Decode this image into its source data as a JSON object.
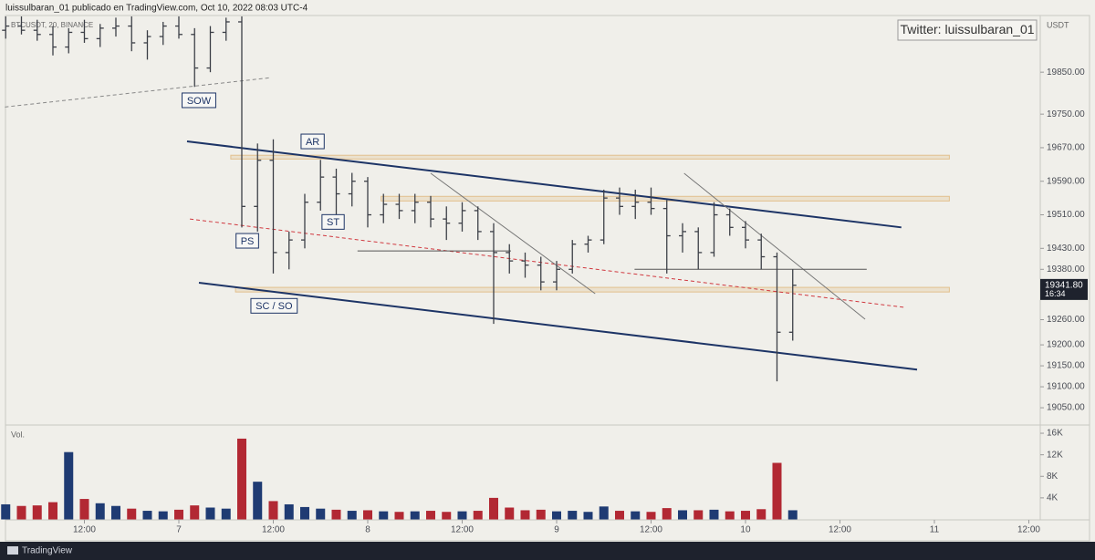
{
  "header": {
    "publisher": "luissulbaran_01 publicado en TradingView.com, Oct 10, 2022 08:03 UTC-4"
  },
  "chart_data": {
    "type": "ohlc",
    "title": "BTCUSDT, 20, BINANCE",
    "unit": "USDT",
    "watermark": "Twitter: luissulbaran_01",
    "bar_color": "#3c3f47",
    "x": [
      -22,
      -20,
      -18,
      -16,
      -14,
      -12,
      -10,
      -8,
      -6,
      -4,
      -2,
      0,
      2,
      4,
      6,
      8,
      10,
      12,
      14,
      16,
      18,
      20,
      22,
      24,
      26,
      28,
      30,
      32,
      34,
      36,
      38,
      40,
      42,
      44,
      46,
      48,
      50,
      52,
      54,
      56,
      58,
      60,
      62,
      64,
      66,
      68,
      70,
      72,
      74,
      76,
      78
    ],
    "open": [
      19950,
      19960,
      19950,
      19940,
      19910,
      19945,
      19930,
      19955,
      19960,
      19920,
      19935,
      19960,
      19940,
      19860,
      19945,
      19970,
      19530,
      19640,
      19420,
      19450,
      19540,
      19600,
      19560,
      19590,
      19510,
      19535,
      19520,
      19540,
      19500,
      19490,
      19520,
      19470,
      19420,
      19400,
      19390,
      19350,
      19380,
      19440,
      19450,
      19550,
      19530,
      19540,
      19525,
      19460,
      19470,
      19420,
      19510,
      19480,
      19450,
      19410,
      19230
    ],
    "high": [
      19990,
      19985,
      19975,
      19960,
      19955,
      19975,
      19965,
      19980,
      19985,
      19950,
      19970,
      19985,
      19955,
      19960,
      19980,
      19990,
      19680,
      19690,
      19470,
      19560,
      19641,
      19620,
      19610,
      19600,
      19560,
      19560,
      19560,
      19555,
      19530,
      19540,
      19530,
      19490,
      19440,
      19420,
      19410,
      19400,
      19450,
      19460,
      19570,
      19575,
      19570,
      19575,
      19545,
      19490,
      19480,
      19540,
      19525,
      19495,
      19465,
      19420,
      19380
    ],
    "low": [
      19930,
      19940,
      19925,
      19890,
      19895,
      19920,
      19910,
      19935,
      19900,
      19880,
      19915,
      19930,
      19815,
      19850,
      19925,
      19480,
      19470,
      19370,
      19380,
      19430,
      19520,
      19505,
      19530,
      19480,
      19490,
      19500,
      19490,
      19480,
      19450,
      19470,
      19450,
      19250,
      19370,
      19360,
      19330,
      19330,
      19370,
      19420,
      19440,
      19510,
      19500,
      19510,
      19370,
      19420,
      19380,
      19410,
      19460,
      19430,
      19380,
      19113,
      19210
    ],
    "close": [
      19960,
      19950,
      19940,
      19910,
      19945,
      19930,
      19955,
      19960,
      19920,
      19935,
      19960,
      19940,
      19860,
      19945,
      19970,
      19530,
      19640,
      19420,
      19450,
      19540,
      19600,
      19560,
      19590,
      19510,
      19535,
      19520,
      19540,
      19500,
      19490,
      19520,
      19470,
      19420,
      19400,
      19390,
      19350,
      19380,
      19440,
      19450,
      19550,
      19530,
      19540,
      19525,
      19460,
      19470,
      19420,
      19510,
      19480,
      19450,
      19410,
      19230,
      19342
    ],
    "xlim": [
      -22.724,
      109.45
    ],
    "xticks": [
      {
        "value": -12,
        "label": "12:00"
      },
      {
        "value": 0,
        "label": "7"
      },
      {
        "value": 12,
        "label": "12:00"
      },
      {
        "value": 24,
        "label": "8"
      },
      {
        "value": 36,
        "label": "12:00"
      },
      {
        "value": 48,
        "label": "9"
      },
      {
        "value": 60,
        "label": "12:00"
      },
      {
        "value": 72,
        "label": "10"
      },
      {
        "value": 84,
        "label": "12:00"
      },
      {
        "value": 96,
        "label": "11"
      },
      {
        "value": 108,
        "label": "12:00"
      }
    ],
    "ylim": [
      19011,
      19983
    ],
    "yticks": [
      {
        "value": 19050,
        "label": "19050.00"
      },
      {
        "value": 19100,
        "label": "19100.00"
      },
      {
        "value": 19150,
        "label": "19150.00"
      },
      {
        "value": 19200,
        "label": "19200.00"
      },
      {
        "value": 19260,
        "label": "19260.00"
      },
      {
        "value": 19380,
        "label": "19380.00"
      },
      {
        "value": 19430,
        "label": "19430.00"
      },
      {
        "value": 19510,
        "label": "19510.00"
      },
      {
        "value": 19590,
        "label": "19590.00"
      },
      {
        "value": 19670,
        "label": "19670.00"
      },
      {
        "value": 19750,
        "label": "19750.00"
      },
      {
        "value": 19850,
        "label": "19850.00"
      }
    ],
    "last_price": {
      "value": 19341.8,
      "label": "19341.80"
    },
    "countdown": "16:34",
    "annotations": [
      {
        "text": "SOW",
        "x": 2.55,
        "y": 19783
      },
      {
        "text": "AR",
        "x": 17,
        "y": 19685
      },
      {
        "text": "PS",
        "x": 8.7,
        "y": 19448
      },
      {
        "text": "ST",
        "x": 19.6,
        "y": 19493
      },
      {
        "text": "SC / SO",
        "x": 12.1,
        "y": 19293
      }
    ],
    "trendlines": [
      {
        "x": [
          1.04,
          91.8
        ],
        "y": [
          19685,
          19480
        ],
        "color": "#1d3466",
        "style": "solid",
        "width": 2
      },
      {
        "x": [
          2.55,
          93.8
        ],
        "y": [
          19348,
          19141
        ],
        "color": "#1d3466",
        "style": "solid",
        "width": 2
      },
      {
        "x": [
          1.4,
          92.3
        ],
        "y": [
          19500,
          19289
        ],
        "color": "#d0383f",
        "style": "dashed",
        "width": 1
      },
      {
        "x": [
          -22.1,
          11.7
        ],
        "y": [
          19767,
          19837
        ],
        "color": "#888888",
        "style": "dashed",
        "width": 1
      },
      {
        "x": [
          32,
          52.9
        ],
        "y": [
          19609,
          19322
        ],
        "color": "#777777",
        "style": "solid",
        "width": 1
      },
      {
        "x": [
          64.2,
          87.2
        ],
        "y": [
          19609,
          19261
        ],
        "color": "#777777",
        "style": "solid",
        "width": 1
      },
      {
        "x": [
          22.7,
          42.2
        ],
        "y": [
          19424,
          19424
        ],
        "color": "#555555",
        "style": "solid",
        "width": 1
      },
      {
        "x": [
          57.9,
          87.4
        ],
        "y": [
          19380,
          19380
        ],
        "color": "#555555",
        "style": "solid",
        "width": 1
      }
    ],
    "zones": [
      {
        "x": [
          6.6,
          97.9
        ],
        "y": [
          19652,
          19643
        ],
        "color": "#e2c08e"
      },
      {
        "x": [
          25.7,
          97.9
        ],
        "y": [
          19554,
          19543
        ],
        "color": "#e2c08e"
      },
      {
        "x": [
          7.2,
          97.9
        ],
        "y": [
          19337,
          19326
        ],
        "color": "#e2c08e"
      }
    ],
    "volume": {
      "label": "Vol.",
      "up_color": "#1f3b73",
      "down_color": "#b22833",
      "values": [
        2800,
        2500,
        2600,
        3200,
        12500,
        3800,
        3000,
        2500,
        2000,
        1600,
        1500,
        1800,
        2600,
        2200,
        2000,
        15000,
        7000,
        3400,
        2800,
        2300,
        2000,
        1800,
        1600,
        1700,
        1500,
        1400,
        1500,
        1600,
        1400,
        1500,
        1600,
        4000,
        2200,
        1700,
        1800,
        1500,
        1600,
        1400,
        2400,
        1600,
        1500,
        1400,
        2100,
        1700,
        1700,
        1800,
        1500,
        1600,
        1900,
        10500,
        1700
      ],
      "ylim": [
        0,
        17360
      ],
      "yticks": [
        {
          "value": 4000,
          "label": "4K"
        },
        {
          "value": 8000,
          "label": "8K"
        },
        {
          "value": 12000,
          "label": "12K"
        },
        {
          "value": 16000,
          "label": "16K"
        }
      ]
    }
  },
  "footer": {
    "brand": "TradingView"
  }
}
